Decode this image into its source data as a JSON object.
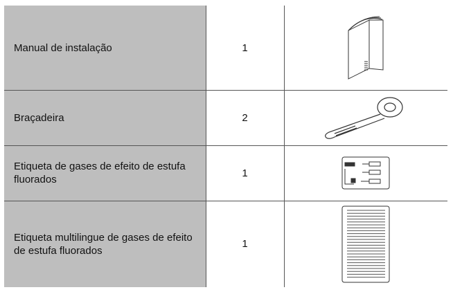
{
  "table": {
    "rows": [
      [
        "Manual de instalação",
        "1"
      ],
      [
        "Braçadeira",
        "2"
      ],
      [
        "Etiqueta de gases de efeito de estufa fluorados",
        "1"
      ],
      [
        "Etiqueta multilingue de gases de efeito de estufa fluorados",
        "1"
      ]
    ]
  }
}
